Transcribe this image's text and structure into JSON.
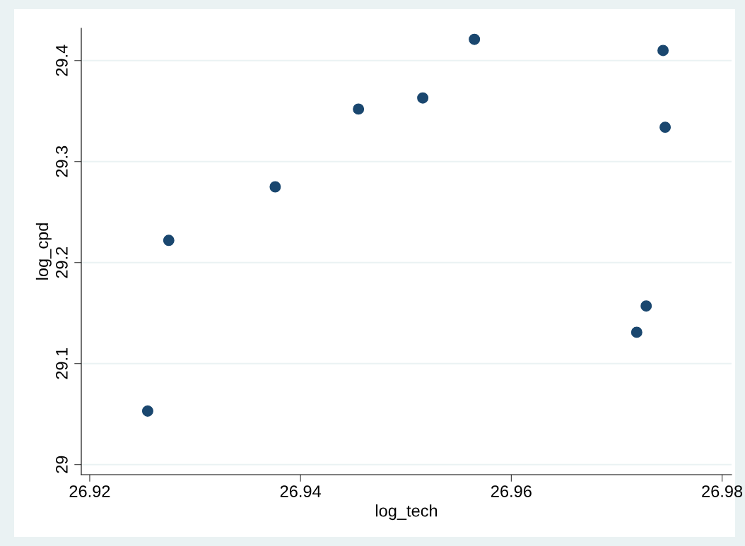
{
  "chart_data": {
    "type": "scatter",
    "xlabel": "log_tech",
    "ylabel": "log_cpd",
    "x": [
      26.9255,
      26.9275,
      26.9376,
      26.9455,
      26.9516,
      26.9565,
      26.9719,
      26.9728,
      26.9744,
      26.9746
    ],
    "series": [
      {
        "color": "#1a476f",
        "values": [
          29.053,
          29.222,
          29.275,
          29.352,
          29.363,
          29.421,
          29.131,
          29.157,
          29.41,
          29.334
        ]
      }
    ],
    "xlim": [
      26.9192,
      26.9809
    ],
    "ylim": [
      28.99,
      29.432
    ],
    "xticks": [
      26.92,
      26.94,
      26.96,
      26.98
    ],
    "yticks": [
      29,
      29.1,
      29.2,
      29.3,
      29.4
    ],
    "grid": "y",
    "marker": "circle",
    "legend": false
  }
}
